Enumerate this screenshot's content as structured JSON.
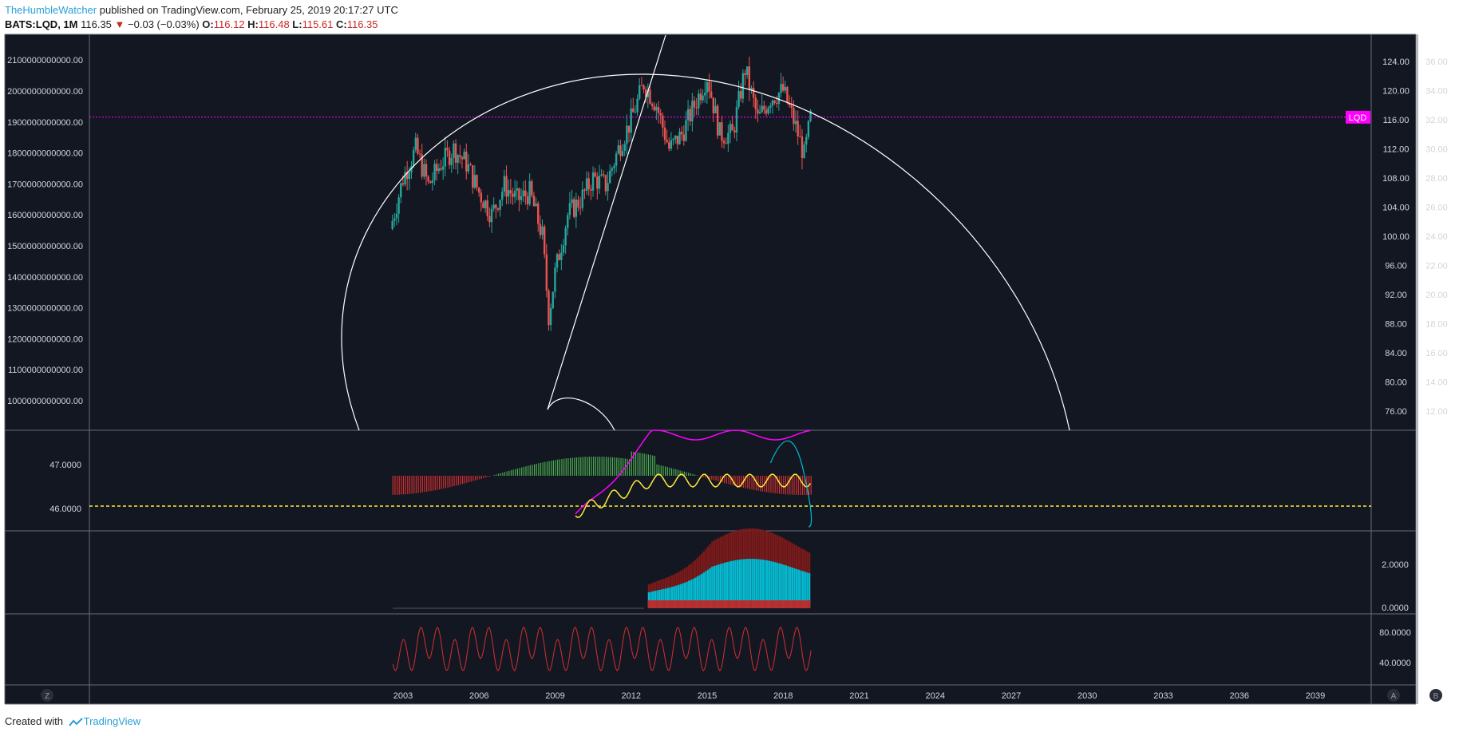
{
  "header": {
    "author": "TheHumbleWatcher",
    "published_text": " published on TradingView.com, February 25, 2019 20:17:27 UTC",
    "symbol": "BATS:LQD, 1M",
    "last": "116.35",
    "down_arrow": "▼",
    "change": "−0.03 (−0.03%)",
    "o_label": "O:",
    "o_value": "116.12",
    "h_label": "H:",
    "h_value": "116.48",
    "l_label": "L:",
    "l_value": "115.61",
    "c_label": "C:",
    "c_value": "116.35"
  },
  "footer": {
    "created_with": "Created with",
    "brand": "TradingView"
  },
  "colors": {
    "background": "#131722",
    "up": "#26a69a",
    "down": "#ef5350",
    "magenta": "#ff00ff",
    "yellow": "#ffeb3b",
    "cyan": "#00bcd4",
    "red": "#d32f2f",
    "green": "#4caf50"
  },
  "chart_data": {
    "type": "candlestick",
    "symbol_label": "LQD",
    "current_price": 116.35,
    "x_axis_ticks": [
      "2003",
      "2006",
      "2009",
      "2012",
      "2015",
      "2018",
      "2021",
      "2024",
      "2027",
      "2030",
      "2033",
      "2036",
      "2039"
    ],
    "main_left_axis_ticks": [
      "2100000000000.00",
      "2000000000000.00",
      "1900000000000.00",
      "1800000000000.00",
      "1700000000000.00",
      "1600000000000.00",
      "1500000000000.00",
      "1400000000000.00",
      "1300000000000.00",
      "1200000000000.00",
      "1100000000000.00",
      "1000000000000.00"
    ],
    "main_right_axis_ticks": [
      "124.00",
      "120.00",
      "116.00",
      "112.00",
      "108.00",
      "104.00",
      "100.00",
      "96.00",
      "92.00",
      "88.00",
      "84.00",
      "80.00",
      "76.00"
    ],
    "main_right2_axis_ticks": [
      "36.00",
      "34.00",
      "32.00",
      "30.00",
      "28.00",
      "26.00",
      "24.00",
      "22.00",
      "20.00",
      "18.00",
      "16.00",
      "14.00",
      "12.00"
    ],
    "price_path_monthly_close": [
      {
        "date": "2002-07",
        "close": 101
      },
      {
        "date": "2003-01",
        "close": 108
      },
      {
        "date": "2003-07",
        "close": 112
      },
      {
        "date": "2004-01",
        "close": 107
      },
      {
        "date": "2004-07",
        "close": 110
      },
      {
        "date": "2005-01",
        "close": 112
      },
      {
        "date": "2005-07",
        "close": 110
      },
      {
        "date": "2006-01",
        "close": 106
      },
      {
        "date": "2006-07",
        "close": 103
      },
      {
        "date": "2007-01",
        "close": 107
      },
      {
        "date": "2007-07",
        "close": 105
      },
      {
        "date": "2008-01",
        "close": 106
      },
      {
        "date": "2008-07",
        "close": 100
      },
      {
        "date": "2008-10",
        "close": 89
      },
      {
        "date": "2009-01",
        "close": 95
      },
      {
        "date": "2009-07",
        "close": 103
      },
      {
        "date": "2010-01",
        "close": 105
      },
      {
        "date": "2010-07",
        "close": 108
      },
      {
        "date": "2011-01",
        "close": 107
      },
      {
        "date": "2011-07",
        "close": 112
      },
      {
        "date": "2012-01",
        "close": 116
      },
      {
        "date": "2012-07",
        "close": 121
      },
      {
        "date": "2013-01",
        "close": 118
      },
      {
        "date": "2013-07",
        "close": 112
      },
      {
        "date": "2014-01",
        "close": 114
      },
      {
        "date": "2014-07",
        "close": 118
      },
      {
        "date": "2015-01",
        "close": 122
      },
      {
        "date": "2015-07",
        "close": 114
      },
      {
        "date": "2016-01",
        "close": 114
      },
      {
        "date": "2016-07",
        "close": 123
      },
      {
        "date": "2017-01",
        "close": 116
      },
      {
        "date": "2017-07",
        "close": 119
      },
      {
        "date": "2018-01",
        "close": 120
      },
      {
        "date": "2018-07",
        "close": 115
      },
      {
        "date": "2018-11",
        "close": 111
      },
      {
        "date": "2019-02",
        "close": 116.35
      }
    ],
    "pane2": {
      "ticks": [
        "47.0000",
        "46.0000"
      ],
      "reference_level": 46.05
    },
    "pane3": {
      "ticks": [
        "2.0000",
        "0.0000"
      ]
    },
    "pane4": {
      "ticks": [
        "80.0000",
        "40.0000"
      ]
    },
    "bottom_left_button": "Z",
    "bottom_right_buttons": [
      "A",
      "B"
    ]
  }
}
